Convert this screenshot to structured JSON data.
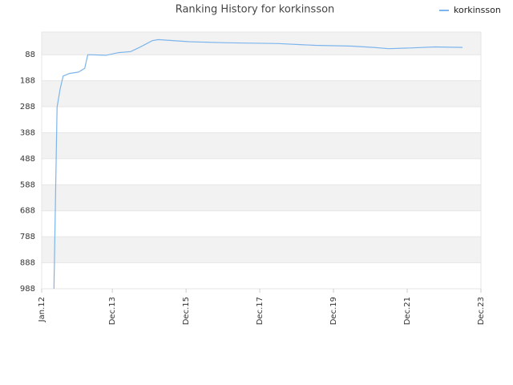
{
  "chart_data": {
    "type": "line",
    "title": "Ranking History for korkinsson",
    "x": [
      "2012-05",
      "2012-06",
      "2012-07",
      "2012-08",
      "2012-10",
      "2013-01",
      "2013-03",
      "2013-04",
      "2013-10",
      "2014-02",
      "2014-06",
      "2014-09",
      "2015-01",
      "2015-03",
      "2016-01",
      "2017-01",
      "2018-06",
      "2019-06",
      "2020-06",
      "2021-01",
      "2021-06",
      "2022-01",
      "2022-09",
      "2023-06"
    ],
    "series": [
      {
        "name": "korkinsson",
        "color": "#7cb5ec",
        "values": [
          988,
          290,
          220,
          170,
          160,
          155,
          140,
          88,
          90,
          80,
          76,
          59,
          34,
          30,
          38,
          42,
          45,
          52,
          55,
          60,
          65,
          62,
          58,
          60
        ]
      }
    ],
    "xlim": [
      "2012-01",
      "2023-12"
    ],
    "xticks": [
      {
        "value": "2012-01",
        "label": "Jan.12"
      },
      {
        "value": "2013-12",
        "label": "Dec.13"
      },
      {
        "value": "2015-12",
        "label": "Dec.15"
      },
      {
        "value": "2017-12",
        "label": "Dec.17"
      },
      {
        "value": "2019-12",
        "label": "Dec.19"
      },
      {
        "value": "2021-12",
        "label": "Dec.21"
      },
      {
        "value": "2023-12",
        "label": "Dec.23"
      }
    ],
    "ylim": [
      988,
      1
    ],
    "yticks": [
      88,
      188,
      288,
      388,
      488,
      588,
      688,
      788,
      888,
      988
    ],
    "grid": true,
    "legend": "top-right"
  }
}
